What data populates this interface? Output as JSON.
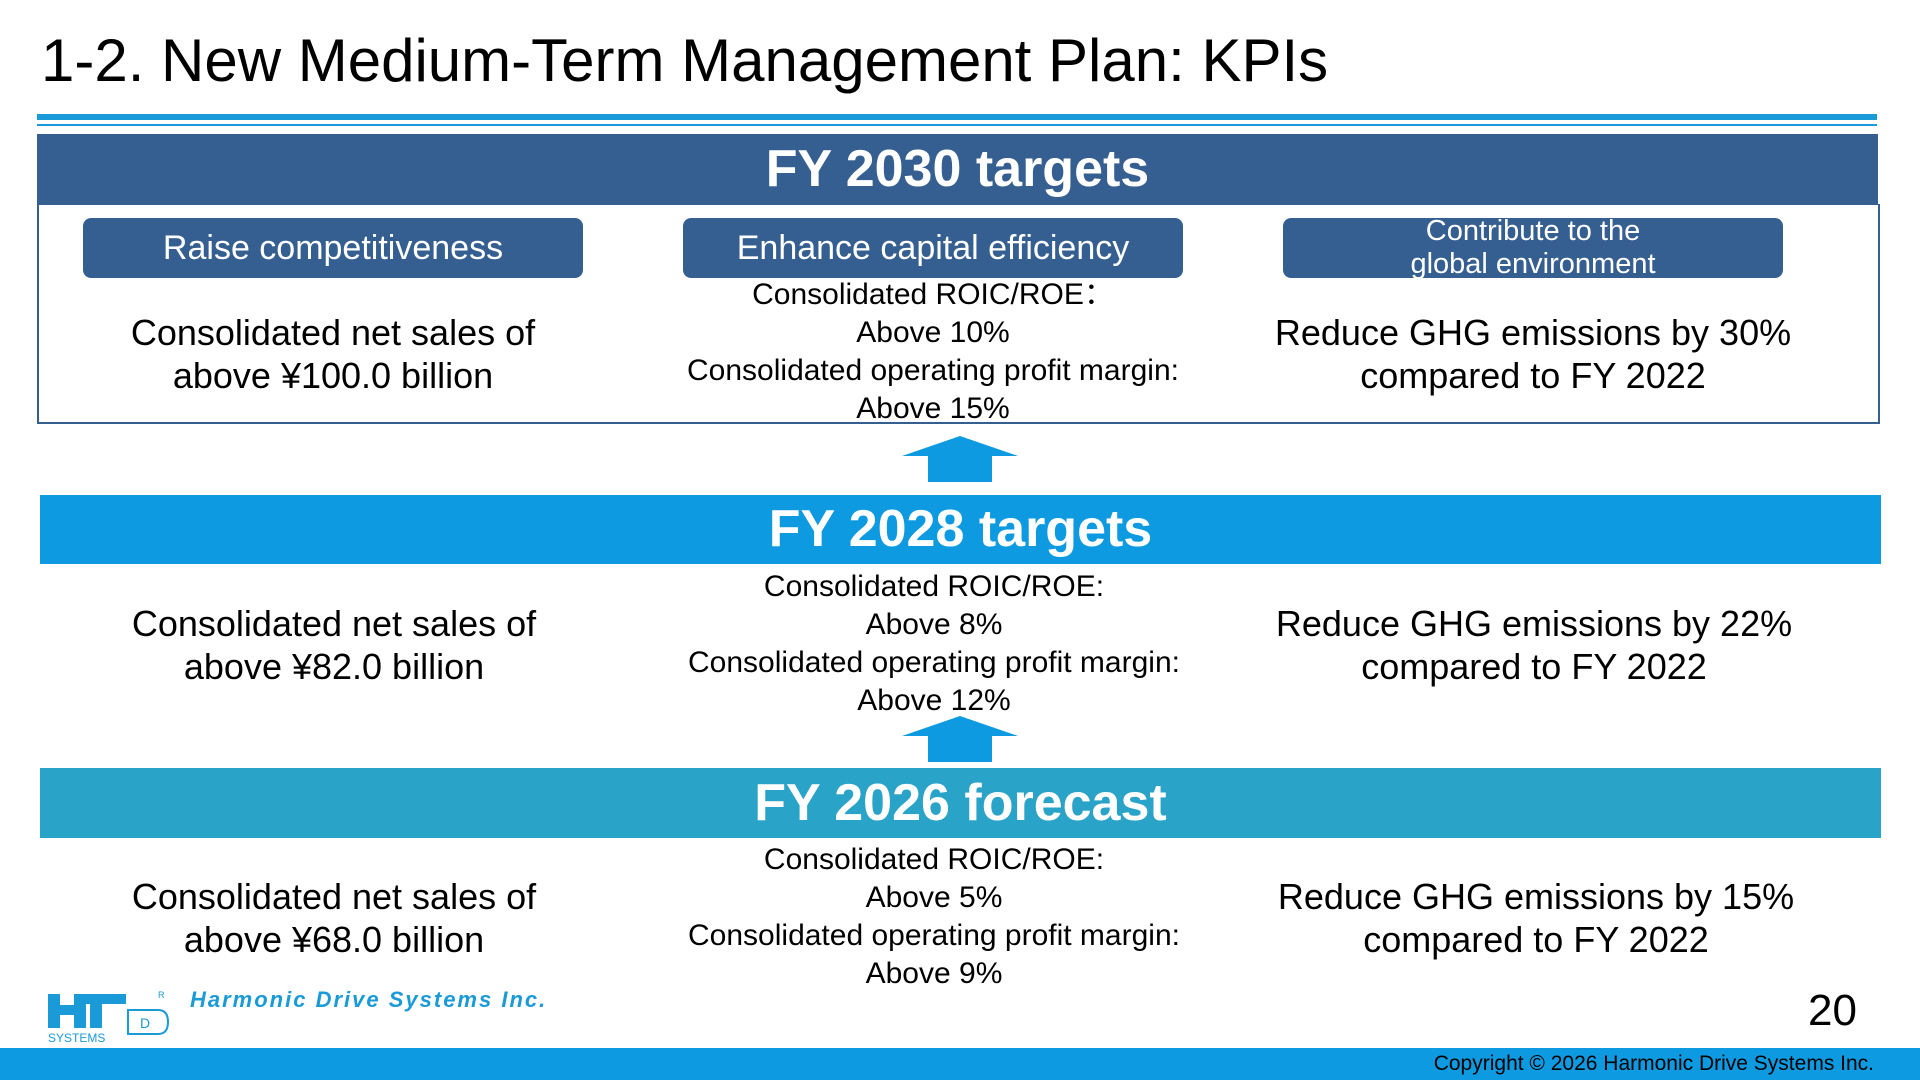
{
  "slide": {
    "title": "1-2. New Medium-Term Management Plan: KPIs",
    "page_number": "20",
    "copyright": "Copyright © 2026 Harmonic Drive Systems Inc.",
    "company_name": "Harmonic Drive Systems Inc.",
    "logo_text": "SYSTEMS"
  },
  "fy2030": {
    "heading": "FY 2030 targets",
    "pillar1": "Raise competitiveness",
    "pillar2": "Enhance capital efficiency",
    "pillar3_line1": "Contribute to the",
    "pillar3_line2": "global environment",
    "sales_line1": "Consolidated net sales of",
    "sales_line2": "above ¥100.0 billion",
    "roic_line1": "Consolidated ROIC/ROE：",
    "roic_line2": "Above 10%",
    "margin_line1": "Consolidated operating profit margin:",
    "margin_line2": "Above 15%",
    "ghg_line1": "Reduce GHG emissions by 30%",
    "ghg_line2": "compared to FY 2022"
  },
  "fy2028": {
    "heading": "FY 2028 targets",
    "sales_line1": "Consolidated net sales of",
    "sales_line2": "above ¥82.0 billion",
    "roic_line1": "Consolidated ROIC/ROE:",
    "roic_line2": "Above 8%",
    "margin_line1": "Consolidated operating profit margin:",
    "margin_line2": "Above 12%",
    "ghg_line1": "Reduce GHG emissions by 22%",
    "ghg_line2": "compared to FY 2022"
  },
  "fy2026": {
    "heading": "FY 2026 forecast",
    "sales_line1": "Consolidated net sales of",
    "sales_line2": "above ¥68.0 billion",
    "roic_line1": "Consolidated ROIC/ROE:",
    "roic_line2": "Above 5%",
    "margin_line1": "Consolidated operating profit margin:",
    "margin_line2": "Above 9%",
    "ghg_line1": "Reduce GHG emissions by 15%",
    "ghg_line2": "compared to FY 2022"
  },
  "colors": {
    "navy": "#365f91",
    "blue": "#0d9ae1",
    "teal": "#2aa3c8"
  }
}
